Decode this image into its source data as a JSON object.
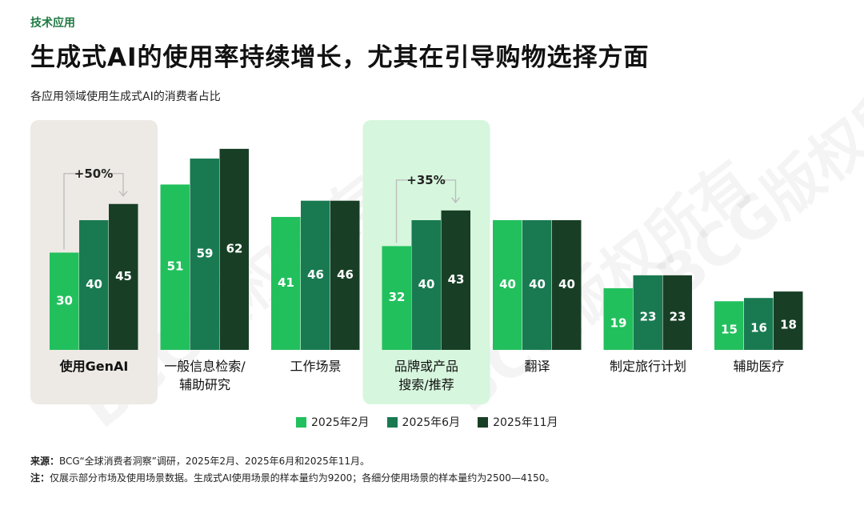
{
  "header": {
    "tag": "技术应用",
    "title": "生成式AI的使用率持续增长，尤其在引导购物选择方面",
    "subtitle": "各应用领域使用生成式AI的消费者占比"
  },
  "watermark": "BCG版权所有",
  "colors": {
    "series": [
      "#22c05d",
      "#197a52",
      "#183f26"
    ],
    "highlight_gray": "#ede9e4",
    "highlight_green": "#d6f6dd",
    "annotation_line": "#bbbbbb"
  },
  "chart_data": {
    "type": "bar",
    "title": "各应用领域使用生成式AI的消费者占比",
    "categories": [
      "使用GenAI",
      "一般信息检索/\n辅助研究",
      "工作场景",
      "品牌或产品\n搜索/推荐",
      "翻译",
      "制定旅行计划",
      "辅助医疗"
    ],
    "series": [
      {
        "name": "2025年2月",
        "values": [
          30,
          51,
          41,
          32,
          40,
          19,
          15
        ]
      },
      {
        "name": "2025年6月",
        "values": [
          40,
          59,
          46,
          40,
          40,
          23,
          16
        ]
      },
      {
        "name": "2025年11月",
        "values": [
          45,
          62,
          46,
          43,
          40,
          23,
          18
        ]
      }
    ],
    "annotations": [
      {
        "category": "使用GenAI",
        "text": "+50%"
      },
      {
        "category": "品牌或产品\n搜索/推荐",
        "text": "+35%"
      }
    ],
    "highlighted_categories": [
      "使用GenAI",
      "品牌或产品\n搜索/推荐"
    ],
    "legend_position": "bottom",
    "grid": false
  },
  "footer": {
    "source_label": "来源：",
    "source_text": "BCG“全球消费者洞察”调研，2025年2月、2025年6月和2025年11月。",
    "note_label": "注：",
    "note_text": "仅展示部分市场及使用场景数据。生成式AI使用场景的样本量约为9200；各细分使用场景的样本量约为2500—4150。"
  }
}
